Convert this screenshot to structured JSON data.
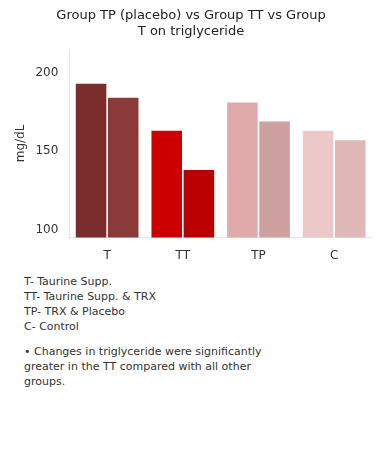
{
  "chart_data": {
    "type": "bar",
    "title": "Group TP (placebo) vs Group TT vs Group\nT on triglyceride",
    "categories": [
      "T",
      "TT",
      "TP",
      "C"
    ],
    "series": [
      {
        "colors": [
          "#7B2D2D",
          "#CC0000",
          "#E0AAAA",
          "#ECC8C8"
        ],
        "values": [
          193,
          163,
          181,
          163
        ]
      },
      {
        "colors": [
          "#8B3A3A",
          "#BB0000",
          "#CFA0A0",
          "#E0B8B8"
        ],
        "values": [
          184,
          138,
          169,
          157
        ]
      }
    ],
    "ylabel": "mg/dL",
    "ylim": [
      95,
      215
    ],
    "yticks": [
      100,
      150,
      200
    ],
    "grid": false,
    "annotations": [
      "T- Taurine Supp.",
      "TT- Taurine Supp. & TRX",
      "TP- TRX & Placebo",
      "C-  Control",
      "• Changes in triglyceride were significantly\ngreater in the TT compared with all other\ngroups."
    ]
  }
}
